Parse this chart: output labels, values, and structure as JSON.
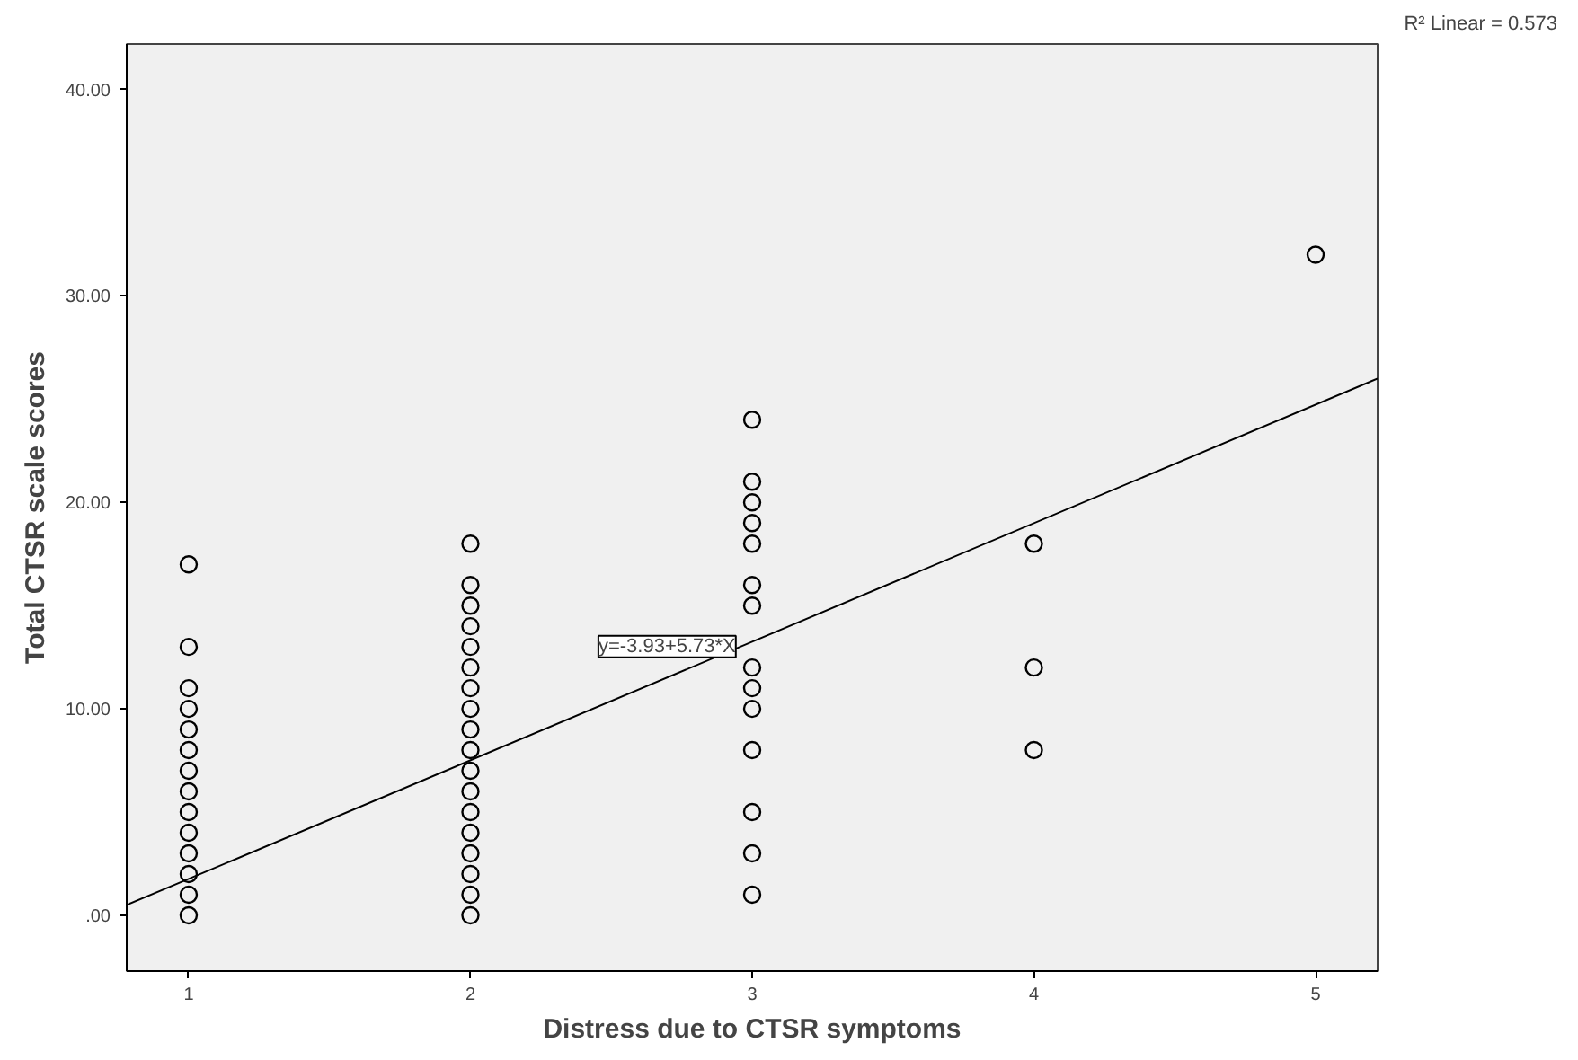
{
  "chart_data": {
    "type": "scatter",
    "xlabel": "Distress due to CTSR symptoms",
    "ylabel": "Total CTSR scale scores",
    "xlim": [
      0.78,
      5.22
    ],
    "ylim": [
      -2.7,
      42.2
    ],
    "xticks": [
      1,
      2,
      3,
      4,
      5
    ],
    "yticks": [
      {
        "value": 0,
        "label": ".00"
      },
      {
        "value": 10,
        "label": "10.00"
      },
      {
        "value": 20,
        "label": "20.00"
      },
      {
        "value": 30,
        "label": "30.00"
      },
      {
        "value": 40,
        "label": "40.00"
      }
    ],
    "grid": false,
    "series": [
      {
        "color": "#000000",
        "marker": "circle",
        "x": [
          1,
          1,
          1,
          1,
          1,
          1,
          1,
          1,
          1,
          1,
          1,
          1,
          1,
          1,
          2,
          2,
          2,
          2,
          2,
          2,
          2,
          2,
          2,
          2,
          2,
          2,
          2,
          2,
          2,
          2,
          2,
          2,
          3,
          3,
          3,
          3,
          3,
          3,
          3,
          3,
          3,
          3,
          3,
          3,
          3,
          3,
          4,
          4,
          4,
          5
        ],
        "values": [
          0,
          1,
          2,
          3,
          4,
          5,
          6,
          7,
          8,
          9,
          10,
          11,
          13,
          17,
          0,
          1,
          2,
          3,
          4,
          5,
          6,
          7,
          8,
          9,
          10,
          11,
          12,
          13,
          14,
          15,
          16,
          18,
          1,
          3,
          5,
          8,
          10,
          11,
          12,
          15,
          16,
          18,
          19,
          20,
          21,
          24,
          8,
          12,
          18,
          32
        ]
      },
      {
        "color": "#000000",
        "type": "line",
        "x": [
          0.78,
          5.22
        ],
        "values": [
          0.5,
          26.0
        ]
      }
    ],
    "annotations": [
      "y=-3.93+5.73*X",
      "R² Linear = 0.573"
    ]
  }
}
